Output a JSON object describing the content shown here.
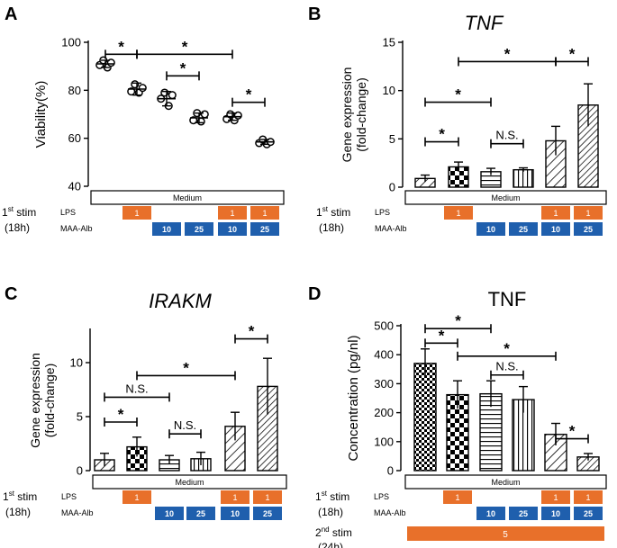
{
  "colors": {
    "lps": "#e8702a",
    "maa": "#1f5fad",
    "axis": "#000000"
  },
  "common": {
    "stim1": "st stim",
    "stim1_prefix": "1",
    "stim1_hours": "(18h)",
    "lps_label": "LPS",
    "maa_label": "MAA-Alb",
    "medium_label": "Medium",
    "lps_value": "1",
    "maa_values": [
      "10",
      "25"
    ]
  },
  "chart_data": [
    {
      "panel": "A",
      "type": "scatter",
      "title": "",
      "xlabel": "",
      "ylabel": "Viability(%)",
      "ylim": [
        40,
        100
      ],
      "yticks": [
        40,
        60,
        80,
        100
      ],
      "groups": [
        "Medium",
        "LPS 1",
        "MAA-Alb 10",
        "MAA-Alb 25",
        "LPS 1 + MAA-Alb 10",
        "LPS 1 + MAA-Alb 25"
      ],
      "points": [
        [
          90.5,
          92.5,
          89.5,
          91.5
        ],
        [
          79.5,
          82.5,
          79.0,
          81.0
        ],
        [
          76.5,
          79.0,
          73.5,
          78.0
        ],
        [
          67.5,
          70.5,
          67.0,
          70.0
        ],
        [
          68.0,
          70.0,
          67.5,
          69.5
        ],
        [
          58.0,
          59.5,
          57.5,
          58.5
        ]
      ],
      "means": [
        91,
        80.5,
        76.5,
        68.5,
        69,
        58.5
      ],
      "sd": [
        1.5,
        2.5,
        3,
        2,
        1.5,
        1
      ],
      "brackets": [
        {
          "from": 0,
          "to": 1,
          "y": 95,
          "label": "*"
        },
        {
          "from": 1,
          "to": 4,
          "y": 95,
          "label": "*"
        },
        {
          "from": 2,
          "to": 3,
          "y": 86,
          "label": "*"
        },
        {
          "from": 4,
          "to": 5,
          "y": 75,
          "label": "*"
        }
      ]
    },
    {
      "panel": "B",
      "type": "bar",
      "title": "TNF",
      "xlabel": "",
      "ylabel": "Gene expression (fold-change)",
      "ylim": [
        0,
        15
      ],
      "yticks": [
        0,
        5,
        10,
        15
      ],
      "groups": [
        "Medium",
        "LPS 1",
        "MAA-Alb 10",
        "MAA-Alb 25",
        "LPS 1 + MAA-Alb 10",
        "LPS 1 + MAA-Alb 25"
      ],
      "values": [
        0.9,
        2.1,
        1.6,
        1.8,
        4.8,
        8.5
      ],
      "errors": [
        0.35,
        0.5,
        0.35,
        0.2,
        1.5,
        2.2
      ],
      "patterns": [
        "diag",
        "check",
        "hlines",
        "vlines",
        "diag",
        "diagdense"
      ],
      "brackets": [
        {
          "from": 0,
          "to": 1,
          "y": 4.7,
          "label": "*"
        },
        {
          "from": 0,
          "to": 2,
          "y": 8.8,
          "label": "*"
        },
        {
          "from": 2,
          "to": 3,
          "y": 4.5,
          "label": "N.S."
        },
        {
          "from": 1,
          "to": 4,
          "y": 13.0,
          "label": "*"
        },
        {
          "from": 4,
          "to": 5,
          "y": 13.0,
          "label": "*"
        }
      ]
    },
    {
      "panel": "C",
      "type": "bar",
      "title": "IRAKM",
      "xlabel": "",
      "ylabel": "Gene expression (fold-change)",
      "ylim": [
        0,
        13
      ],
      "yticks": [
        0,
        5,
        10
      ],
      "groups": [
        "Medium",
        "LPS 1",
        "MAA-Alb 10",
        "MAA-Alb 25",
        "LPS 1 + MAA-Alb 10",
        "LPS 1 + MAA-Alb 25"
      ],
      "values": [
        1.0,
        2.2,
        1.0,
        1.1,
        4.1,
        7.8
      ],
      "errors": [
        0.6,
        0.9,
        0.4,
        0.6,
        1.3,
        2.6
      ],
      "patterns": [
        "diag",
        "check",
        "hlines",
        "vlines",
        "diag",
        "diagdense"
      ],
      "brackets": [
        {
          "from": 0,
          "to": 1,
          "y": 4.5,
          "label": "*"
        },
        {
          "from": 0,
          "to": 2,
          "y": 6.8,
          "label": "N.S."
        },
        {
          "from": 2,
          "to": 3,
          "y": 3.4,
          "label": "N.S."
        },
        {
          "from": 1,
          "to": 4,
          "y": 8.8,
          "label": "*"
        },
        {
          "from": 4,
          "to": 5,
          "y": 12.2,
          "label": "*"
        }
      ]
    },
    {
      "panel": "D",
      "type": "bar",
      "title": "TNF",
      "xlabel": "",
      "ylabel": "Concentration (pg/nl)",
      "ylim": [
        0,
        500
      ],
      "yticks": [
        0,
        100,
        200,
        300,
        400,
        500
      ],
      "groups": [
        "Medium",
        "LPS 1",
        "MAA-Alb 10",
        "MAA-Alb 25",
        "LPS 1 + MAA-Alb 10",
        "LPS 1 + MAA-Alb 25"
      ],
      "values": [
        370,
        262,
        265,
        245,
        125,
        47
      ],
      "errors": [
        50,
        48,
        45,
        45,
        38,
        12
      ],
      "patterns": [
        "checkfine",
        "check",
        "hlines",
        "vlines",
        "diag",
        "diagdense"
      ],
      "brackets": [
        {
          "from": 0,
          "to": 1,
          "y": 440,
          "label": "*"
        },
        {
          "from": 0,
          "to": 2,
          "y": 490,
          "label": "*"
        },
        {
          "from": 1,
          "to": 4,
          "y": 395,
          "label": "*"
        },
        {
          "from": 2,
          "to": 3,
          "y": 330,
          "label": "N.S."
        },
        {
          "from": 4,
          "to": 5,
          "y": 110,
          "label": "*"
        }
      ],
      "stim2": {
        "prefix": "2",
        "label": "nd stim",
        "hours": "(24h)",
        "value": "5"
      }
    }
  ]
}
